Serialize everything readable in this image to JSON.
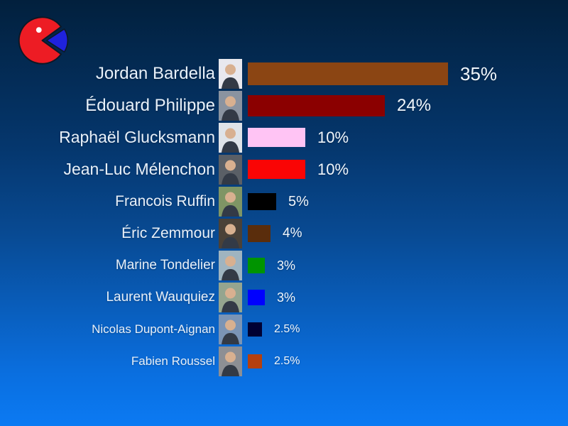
{
  "logo": {
    "name": "pie-pacman-logo",
    "body_color": "#ed1c24",
    "slice_color": "#1f22dd",
    "outline_color": "#0c1826",
    "eye_color": "#ffffff"
  },
  "chart_data": {
    "type": "bar",
    "orientation": "horizontal",
    "title": "",
    "xlabel": "",
    "ylabel": "",
    "unit": "%",
    "xlim": [
      0,
      40
    ],
    "gridlines": false,
    "legend": false,
    "categories": [
      "Jordan Bardella",
      "Édouard Philippe",
      "Raphaël Glucksmann",
      "Jean-Luc Mélenchon",
      "Francois Ruffin",
      "Éric Zemmour",
      "Marine Tondelier",
      "Laurent Wauquiez",
      "Nicolas Dupont-Aignan",
      "Fabien Roussel"
    ],
    "values": [
      35,
      24,
      10,
      10,
      5,
      4,
      3,
      3,
      2.5,
      2.5
    ],
    "value_labels": [
      "35%",
      "24%",
      "10%",
      "10%",
      "5%",
      "4%",
      "3%",
      "3%",
      "2.5%",
      "2.5%"
    ],
    "bar_colors": [
      "#8B4513",
      "#8B0000",
      "#FFC4F4",
      "#FA0505",
      "#000000",
      "#5A2D0C",
      "#009400",
      "#0000FF",
      "#000033",
      "#B5400E"
    ],
    "photo_bg_colors": [
      "#e8e8ee",
      "#8a93a0",
      "#dfe3e8",
      "#5a5f66",
      "#7f9565",
      "#4a4138",
      "#9fb4c0",
      "#95a58f",
      "#7b94b5",
      "#8d8f94"
    ]
  }
}
